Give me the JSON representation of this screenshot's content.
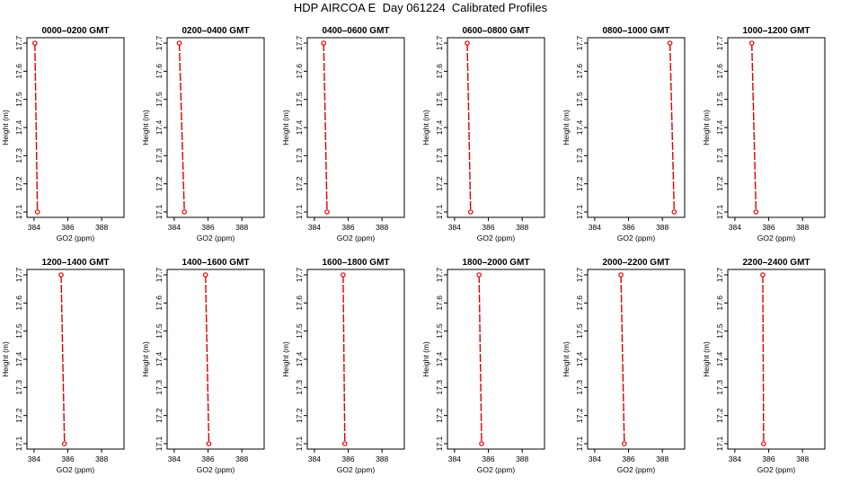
{
  "title": "HDP AIRCOA E  Day 061224  Calibrated Profiles",
  "colors": {
    "line": "#e00000",
    "frame": "#000000"
  },
  "chart_data": [
    {
      "type": "line",
      "title": "0000–0200 GMT",
      "xlabel": "GO2 (ppm)",
      "ylabel": "Height (m)",
      "xlim": [
        383.9,
        389
      ],
      "ylim": [
        17.1,
        17.7
      ],
      "xticks": [
        "384",
        "386",
        "388"
      ],
      "yticks": [
        "17.1",
        "17.2",
        "17.3",
        "17.4",
        "17.5",
        "17.6",
        "17.7"
      ],
      "x": [
        384.05,
        384.2
      ],
      "y": [
        17.7,
        17.1
      ]
    },
    {
      "type": "line",
      "title": "0200–0400 GMT",
      "xlabel": "GO2 (ppm)",
      "ylabel": "Height (m)",
      "xlim": [
        383.9,
        389
      ],
      "ylim": [
        17.1,
        17.7
      ],
      "xticks": [
        "384",
        "386",
        "388"
      ],
      "yticks": [
        "17.1",
        "17.2",
        "17.3",
        "17.4",
        "17.5",
        "17.6",
        "17.7"
      ],
      "x": [
        384.3,
        384.6
      ],
      "y": [
        17.7,
        17.1
      ]
    },
    {
      "type": "line",
      "title": "0400–0600 GMT",
      "xlabel": "GO2 (ppm)",
      "ylabel": "Height (m)",
      "xlim": [
        383.9,
        389
      ],
      "ylim": [
        17.1,
        17.7
      ],
      "xticks": [
        "384",
        "386",
        "388"
      ],
      "yticks": [
        "17.1",
        "17.2",
        "17.3",
        "17.4",
        "17.5",
        "17.6",
        "17.7"
      ],
      "x": [
        384.55,
        384.75
      ],
      "y": [
        17.7,
        17.1
      ]
    },
    {
      "type": "line",
      "title": "0600–0800 GMT",
      "xlabel": "GO2 (ppm)",
      "ylabel": "Height (m)",
      "xlim": [
        383.9,
        389
      ],
      "ylim": [
        17.1,
        17.7
      ],
      "xticks": [
        "384",
        "386",
        "388"
      ],
      "yticks": [
        "17.1",
        "17.2",
        "17.3",
        "17.4",
        "17.5",
        "17.6",
        "17.7"
      ],
      "x": [
        384.75,
        384.95
      ],
      "y": [
        17.7,
        17.1
      ]
    },
    {
      "type": "line",
      "title": "0800–1000 GMT",
      "xlabel": "GO2 (ppm)",
      "ylabel": "Height (m)",
      "xlim": [
        383.9,
        389
      ],
      "ylim": [
        17.1,
        17.7
      ],
      "xticks": [
        "384",
        "386",
        "388"
      ],
      "yticks": [
        "17.1",
        "17.2",
        "17.3",
        "17.4",
        "17.5",
        "17.6",
        "17.7"
      ],
      "x": [
        388.45,
        388.7
      ],
      "y": [
        17.7,
        17.1
      ]
    },
    {
      "type": "line",
      "title": "1000–1200 GMT",
      "xlabel": "GO2 (ppm)",
      "ylabel": "Height (m)",
      "xlim": [
        383.9,
        389
      ],
      "ylim": [
        17.1,
        17.7
      ],
      "xticks": [
        "384",
        "386",
        "388"
      ],
      "yticks": [
        "17.1",
        "17.2",
        "17.3",
        "17.4",
        "17.5",
        "17.6",
        "17.7"
      ],
      "x": [
        385.0,
        385.25
      ],
      "y": [
        17.7,
        17.1
      ]
    },
    {
      "type": "line",
      "title": "1200–1400 GMT",
      "xlabel": "GO2 (ppm)",
      "ylabel": "Height (m)",
      "xlim": [
        383.9,
        389
      ],
      "ylim": [
        17.1,
        17.7
      ],
      "xticks": [
        "384",
        "386",
        "388"
      ],
      "yticks": [
        "17.1",
        "17.2",
        "17.3",
        "17.4",
        "17.5",
        "17.6",
        "17.7"
      ],
      "x": [
        385.6,
        385.8
      ],
      "y": [
        17.7,
        17.1
      ]
    },
    {
      "type": "line",
      "title": "1400–1600 GMT",
      "xlabel": "GO2 (ppm)",
      "ylabel": "Height (m)",
      "xlim": [
        383.9,
        389
      ],
      "ylim": [
        17.1,
        17.7
      ],
      "xticks": [
        "384",
        "386",
        "388"
      ],
      "yticks": [
        "17.1",
        "17.2",
        "17.3",
        "17.4",
        "17.5",
        "17.6",
        "17.7"
      ],
      "x": [
        385.85,
        386.05
      ],
      "y": [
        17.7,
        17.1
      ]
    },
    {
      "type": "line",
      "title": "1600–1800 GMT",
      "xlabel": "GO2 (ppm)",
      "ylabel": "Height (m)",
      "xlim": [
        383.9,
        389
      ],
      "ylim": [
        17.1,
        17.7
      ],
      "xticks": [
        "384",
        "386",
        "388"
      ],
      "yticks": [
        "17.1",
        "17.2",
        "17.3",
        "17.4",
        "17.5",
        "17.6",
        "17.7"
      ],
      "x": [
        385.7,
        385.8
      ],
      "y": [
        17.7,
        17.1
      ]
    },
    {
      "type": "line",
      "title": "1800–2000 GMT",
      "xlabel": "GO2 (ppm)",
      "ylabel": "Height (m)",
      "xlim": [
        383.9,
        389
      ],
      "ylim": [
        17.1,
        17.7
      ],
      "xticks": [
        "384",
        "386",
        "388"
      ],
      "yticks": [
        "17.1",
        "17.2",
        "17.3",
        "17.4",
        "17.5",
        "17.6",
        "17.7"
      ],
      "x": [
        385.45,
        385.6
      ],
      "y": [
        17.7,
        17.1
      ]
    },
    {
      "type": "line",
      "title": "2000–2200 GMT",
      "xlabel": "GO2 (ppm)",
      "ylabel": "Height (m)",
      "xlim": [
        383.9,
        389
      ],
      "ylim": [
        17.1,
        17.7
      ],
      "xticks": [
        "384",
        "386",
        "388"
      ],
      "yticks": [
        "17.1",
        "17.2",
        "17.3",
        "17.4",
        "17.5",
        "17.6",
        "17.7"
      ],
      "x": [
        385.55,
        385.75
      ],
      "y": [
        17.7,
        17.1
      ]
    },
    {
      "type": "line",
      "title": "2200–2400 GMT",
      "xlabel": "GO2 (ppm)",
      "ylabel": "Height (m)",
      "xlim": [
        383.9,
        389
      ],
      "ylim": [
        17.1,
        17.7
      ],
      "xticks": [
        "384",
        "386",
        "388"
      ],
      "yticks": [
        "17.1",
        "17.2",
        "17.3",
        "17.4",
        "17.5",
        "17.6",
        "17.7"
      ],
      "x": [
        385.65,
        385.7
      ],
      "y": [
        17.7,
        17.1
      ]
    }
  ]
}
